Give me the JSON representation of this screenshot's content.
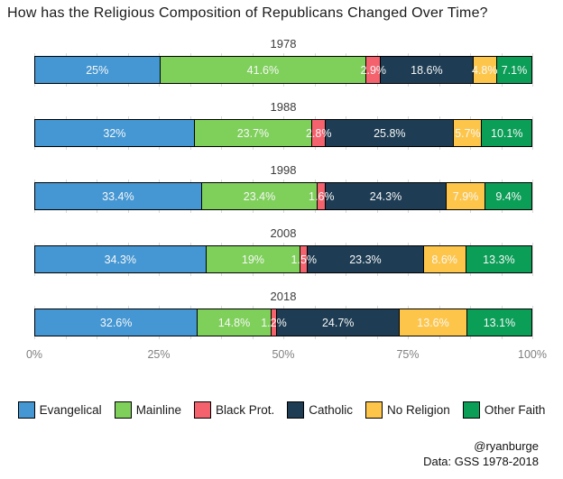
{
  "title": "How has the Religious Composition of Republicans Changed Over Time?",
  "attribution": {
    "line1": "@ryanburge",
    "line2": "Data: GSS 1978-2018"
  },
  "chart_data": {
    "type": "bar",
    "subtype": "stacked-horizontal-100percent",
    "title": "How has the Religious Composition of Republicans Changed Over Time?",
    "categories": [
      "Evangelical",
      "Mainline",
      "Black Prot.",
      "Catholic",
      "No Religion",
      "Other Faith"
    ],
    "colors": [
      "#4497d3",
      "#7fd05b",
      "#f4626e",
      "#1e3d54",
      "#fdc64b",
      "#0b9e57"
    ],
    "facets": [
      {
        "year": "1978",
        "values": [
          25,
          41.6,
          2.9,
          18.6,
          4.8,
          7.1
        ]
      },
      {
        "year": "1988",
        "values": [
          32,
          23.7,
          2.8,
          25.8,
          5.7,
          10.1
        ]
      },
      {
        "year": "1998",
        "values": [
          33.4,
          23.4,
          1.6,
          24.3,
          7.9,
          9.4
        ]
      },
      {
        "year": "2008",
        "values": [
          34.3,
          19,
          1.5,
          23.3,
          8.6,
          13.3
        ]
      },
      {
        "year": "2018",
        "values": [
          32.6,
          14.8,
          1.2,
          24.7,
          13.6,
          13.1
        ]
      }
    ],
    "value_label_suffix": "%",
    "x_ticks": [
      "0%",
      "25%",
      "50%",
      "75%",
      "100%"
    ],
    "xlim": [
      0,
      100
    ],
    "gridline_color": "#d9d9d9",
    "legend_position": "bottom"
  }
}
